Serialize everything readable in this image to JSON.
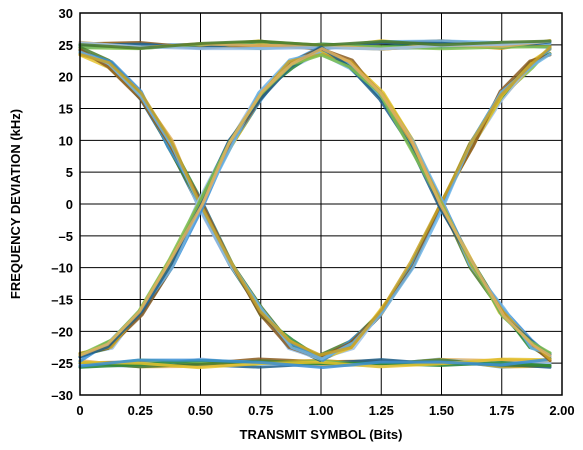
{
  "chart_data": {
    "type": "line",
    "title": "",
    "xlabel": "TRANSMIT SYMBOL (Bits)",
    "ylabel": "FREQUENCY DEVIATION (kHz)",
    "xlim": [
      0,
      2.0
    ],
    "ylim": [
      -30,
      30
    ],
    "xticks": [
      0,
      0.25,
      0.5,
      0.75,
      1.0,
      1.25,
      1.5,
      1.75,
      2.0
    ],
    "xtick_labels": [
      "0",
      "0.25",
      "0.50",
      "0.75",
      "1.00",
      "1.25",
      "1.50",
      "1.75",
      "2.00"
    ],
    "yticks": [
      30,
      25,
      20,
      15,
      10,
      5,
      0,
      -5,
      -10,
      -15,
      -20,
      -25,
      -30
    ],
    "ytick_labels": [
      "30",
      "25",
      "20",
      "15",
      "10",
      "5",
      "0",
      "–5",
      "–10",
      "–15",
      "–20",
      "–25",
      "–30"
    ],
    "grid": true,
    "legend": "none",
    "series_colors": [
      "#2e8b3a",
      "#e6c32e",
      "#3b8fd6",
      "#8a5a1e",
      "#6cb4e8",
      "#c9a227",
      "#1f5f8b",
      "#7fbf4f",
      "#e0b060",
      "#9ac0e8",
      "#4a7a2a"
    ],
    "series": [
      {
        "pattern": "high-high",
        "x": [
          0,
          0.25,
          0.5,
          0.75,
          1.0,
          1.25,
          1.5,
          1.75,
          1.95
        ],
        "values": [
          25,
          25,
          25,
          25,
          25,
          25,
          25,
          25,
          25
        ]
      },
      {
        "pattern": "low-low",
        "x": [
          0,
          0.25,
          0.5,
          0.75,
          1.0,
          1.25,
          1.5,
          1.75,
          1.95
        ],
        "values": [
          -25,
          -25,
          -25,
          -25,
          -25,
          -25,
          -25,
          -25,
          -25
        ]
      },
      {
        "pattern": "high-low-high",
        "x": [
          0,
          0.125,
          0.25,
          0.375,
          0.5,
          0.625,
          0.75,
          0.875,
          1.0,
          1.125,
          1.25,
          1.375,
          1.5,
          1.625,
          1.75,
          1.875,
          1.95
        ],
        "values": [
          24,
          22,
          17,
          9.5,
          0,
          -9.5,
          -17,
          -22,
          -24,
          -22,
          -17,
          -9.5,
          0,
          9.5,
          17,
          22,
          24
        ]
      },
      {
        "pattern": "low-high-low",
        "x": [
          0,
          0.125,
          0.25,
          0.375,
          0.5,
          0.625,
          0.75,
          0.875,
          1.0,
          1.125,
          1.25,
          1.375,
          1.5,
          1.625,
          1.75,
          1.875,
          1.95
        ],
        "values": [
          -24,
          -22,
          -17,
          -9.5,
          0,
          9.5,
          17,
          22,
          24,
          22,
          17,
          9.5,
          0,
          -9.5,
          -17,
          -22,
          -24
        ]
      }
    ]
  }
}
